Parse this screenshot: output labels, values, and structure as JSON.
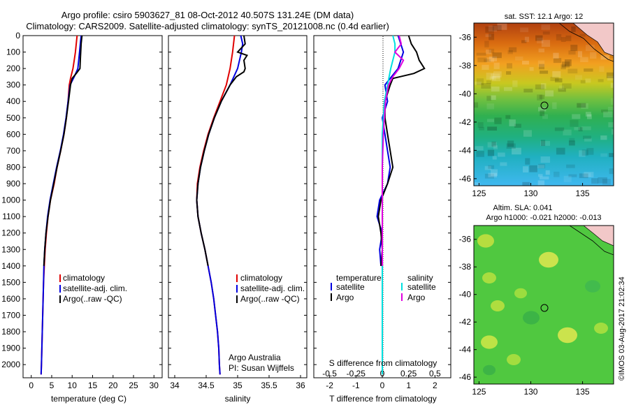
{
  "header": {
    "title_line1": "Argo profile: csiro 5903627_81 08-Oct-2012 40.507S 131.24E (DM data)",
    "title_line2": "Climatology: CARS2009. Satellite-adjusted climatology: synTS_20121008.nc (0.4d earlier)"
  },
  "colors": {
    "climatology": "#e00000",
    "satellite": "#0000e0",
    "argo": "#000000",
    "salinity_satellite": "#00e0e0",
    "salinity_argo": "#e000e0"
  },
  "chart_data": [
    {
      "type": "line",
      "name": "temperature-profile",
      "xlabel": "temperature (deg C)",
      "ylabel": "",
      "xlim": [
        -2,
        32
      ],
      "ylim": [
        2080,
        0
      ],
      "xticks": [
        "0",
        "5",
        "10",
        "15",
        "20",
        "25",
        "30"
      ],
      "yticks": [
        "0",
        "100",
        "200",
        "300",
        "400",
        "500",
        "600",
        "700",
        "800",
        "900",
        "1000",
        "1100",
        "1200",
        "1300",
        "1400",
        "1500",
        "1600",
        "1700",
        "1800",
        "1900",
        "2000"
      ],
      "legend": [
        "climatology",
        "satellite-adj. clim.",
        "Argo(..raw -QC)"
      ],
      "series": [
        {
          "name": "climatology",
          "depth": [
            0,
            100,
            150,
            200,
            260,
            300,
            400,
            500,
            600,
            700,
            800,
            900,
            1000,
            1100,
            1200,
            1300,
            1400,
            1500,
            1600,
            1700,
            1800,
            1900,
            2000,
            2060
          ],
          "values": [
            11.2,
            10.8,
            10.5,
            10.2,
            9.6,
            9.3,
            9.0,
            8.6,
            8.0,
            7.2,
            6.3,
            5.6,
            4.7,
            4.1,
            3.7,
            3.4,
            3.2,
            3.0,
            2.9,
            2.8,
            2.7,
            2.6,
            2.5,
            2.4
          ]
        },
        {
          "name": "satellite-adj. clim.",
          "depth": [
            0,
            50,
            100,
            150,
            200,
            250,
            300,
            400,
            500,
            600,
            700,
            800,
            900,
            1000,
            1100,
            1200,
            1300,
            1400,
            1500,
            1600,
            1700,
            1800,
            1900,
            2000,
            2060
          ],
          "values": [
            12.2,
            12.0,
            11.8,
            11.6,
            11.4,
            10.5,
            9.5,
            9.0,
            8.5,
            7.9,
            7.1,
            6.2,
            5.4,
            4.6,
            4.0,
            3.6,
            3.3,
            3.1,
            3.0,
            2.9,
            2.8,
            2.7,
            2.6,
            2.5,
            2.4
          ]
        },
        {
          "name": "Argo(..raw -QC)",
          "depth": [
            0,
            50,
            100,
            150,
            200,
            230,
            260,
            300,
            400,
            500,
            600,
            700,
            800,
            900,
            1000,
            1100,
            1200,
            1300,
            1400
          ],
          "values": [
            12.4,
            12.2,
            12.1,
            12.0,
            11.9,
            11.0,
            10.0,
            9.6,
            9.1,
            8.6,
            8.0,
            7.2,
            6.3,
            5.5,
            4.7,
            4.1,
            3.6,
            3.3,
            3.1
          ]
        }
      ]
    },
    {
      "type": "line",
      "name": "salinity-profile",
      "xlabel": "salinity",
      "xlim": [
        33.9,
        36.1
      ],
      "ylim": [
        2080,
        0
      ],
      "xticks": [
        "34",
        "34.5",
        "35",
        "35.5",
        "36"
      ],
      "legend": [
        "climatology",
        "satellite-adj. clim.",
        "Argo(..raw -QC)"
      ],
      "annotation_line1": "Argo Australia",
      "annotation_line2": "PI: Susan Wijffels",
      "series": [
        {
          "name": "climatology",
          "depth": [
            0,
            100,
            150,
            200,
            250,
            300,
            400,
            500,
            600,
            700,
            800,
            900,
            1000,
            1100,
            1200,
            1300,
            1400,
            1500,
            1600,
            1700,
            1800,
            1900,
            2000,
            2060
          ],
          "values": [
            34.95,
            34.92,
            34.9,
            34.88,
            34.85,
            34.82,
            34.72,
            34.62,
            34.53,
            34.46,
            34.4,
            34.36,
            34.35,
            34.37,
            34.42,
            34.48,
            34.53,
            34.58,
            34.62,
            34.65,
            34.68,
            34.7,
            34.71,
            34.72
          ]
        },
        {
          "name": "satellite-adj. clim.",
          "depth": [
            0,
            50,
            100,
            150,
            200,
            250,
            300,
            400,
            500,
            600,
            700,
            800,
            900,
            1000,
            1100,
            1200,
            1300,
            1400,
            1500,
            1600,
            1700,
            1800,
            1900,
            2000,
            2060
          ],
          "values": [
            35.05,
            35.08,
            35.06,
            35.03,
            35.0,
            34.94,
            34.88,
            34.74,
            34.63,
            34.54,
            34.47,
            34.41,
            34.37,
            34.35,
            34.37,
            34.42,
            34.48,
            34.53,
            34.58,
            34.62,
            34.65,
            34.68,
            34.7,
            34.71,
            34.72
          ]
        },
        {
          "name": "Argo(..raw -QC)",
          "depth": [
            0,
            50,
            100,
            120,
            150,
            200,
            220,
            250,
            300,
            400,
            500,
            600,
            700,
            800,
            900,
            1000,
            1100,
            1200,
            1300,
            1400
          ],
          "values": [
            35.1,
            35.12,
            35.0,
            35.15,
            35.1,
            35.12,
            35.1,
            34.98,
            34.88,
            34.74,
            34.63,
            34.54,
            34.47,
            34.41,
            34.37,
            34.35,
            34.37,
            34.42,
            34.48,
            34.53
          ]
        }
      ]
    },
    {
      "type": "line",
      "name": "difference-profile",
      "xlabel": "T difference from climatology",
      "xlabel_top": "S difference from climatology",
      "xlim": [
        -2.6,
        2.6
      ],
      "ylim": [
        2080,
        0
      ],
      "xticks": [
        "-2",
        "-1",
        "0",
        "1",
        "2"
      ],
      "xticks_top": [
        "-0.5",
        "-0.25",
        "0",
        "0.25",
        "0.5"
      ],
      "legend_left_title": "temperature",
      "legend_right_title": "salinity",
      "legend_left": [
        "satellite",
        "Argo"
      ],
      "legend_right": [
        "satellite",
        "Argo"
      ],
      "series": [
        {
          "name": "temperature satellite",
          "depth": [
            0,
            100,
            200,
            300,
            400,
            500,
            600,
            700,
            800,
            900,
            1000,
            1100,
            1150,
            1200,
            1300,
            1400
          ],
          "values": [
            0.6,
            0.8,
            0.6,
            0.1,
            0.2,
            0.0,
            0.1,
            0.2,
            0.3,
            0.2,
            -0.1,
            -0.2,
            -0.1,
            0.0,
            -0.1,
            -0.05
          ]
        },
        {
          "name": "temperature Argo",
          "depth": [
            0,
            50,
            100,
            150,
            200,
            230,
            260,
            300,
            400,
            500,
            600,
            700,
            800,
            900,
            1000,
            1100,
            1200,
            1300,
            1400
          ],
          "values": [
            1.0,
            1.1,
            1.3,
            1.4,
            1.6,
            1.2,
            0.4,
            0.3,
            0.1,
            0.1,
            0.2,
            0.3,
            0.4,
            0.2,
            -0.05,
            -0.15,
            -0.05,
            0.0,
            -0.05
          ]
        },
        {
          "name": "salinity satellite",
          "depth": [
            0,
            50,
            100,
            150,
            200,
            300,
            400,
            600,
            800,
            1000,
            1200,
            1400,
            1600,
            1800,
            2000,
            2060
          ],
          "values": [
            0.1,
            0.12,
            0.12,
            0.1,
            0.08,
            0.05,
            0.02,
            0.0,
            0.0,
            0.0,
            0.0,
            0.0,
            0.0,
            0.0,
            0.0,
            0.0
          ]
        },
        {
          "name": "salinity Argo",
          "depth": [
            0,
            50,
            100,
            150,
            200,
            250,
            300,
            400,
            600,
            800,
            1000,
            1200,
            1400
          ],
          "values": [
            0.16,
            0.18,
            0.12,
            0.2,
            0.16,
            0.1,
            0.06,
            0.03,
            0.01,
            0.0,
            0.0,
            0.0,
            0.0
          ]
        }
      ]
    },
    {
      "type": "heatmap",
      "name": "sst-map",
      "title": "sat. SST: 12.1  Argo: 12",
      "xticks": [
        "125",
        "130",
        "135"
      ],
      "yticks": [
        "-36",
        "-38",
        "-40",
        "-42",
        "-44",
        "-46"
      ],
      "marker": {
        "lon": 131.24,
        "lat": -40.507
      }
    },
    {
      "type": "heatmap",
      "name": "sla-map",
      "title_line1": "Altim. SLA: 0.041",
      "title_line2": "Argo h1000: -0.021 h2000: -0.013",
      "xticks": [
        "125",
        "130",
        "135"
      ],
      "yticks": [
        "-36",
        "-38",
        "-40",
        "-42",
        "-44",
        "-46"
      ],
      "marker": {
        "lon": 131.24,
        "lat": -40.507
      }
    }
  ],
  "footer": {
    "stamp": "©IMOS 03-Aug-2017 21:02:34"
  }
}
